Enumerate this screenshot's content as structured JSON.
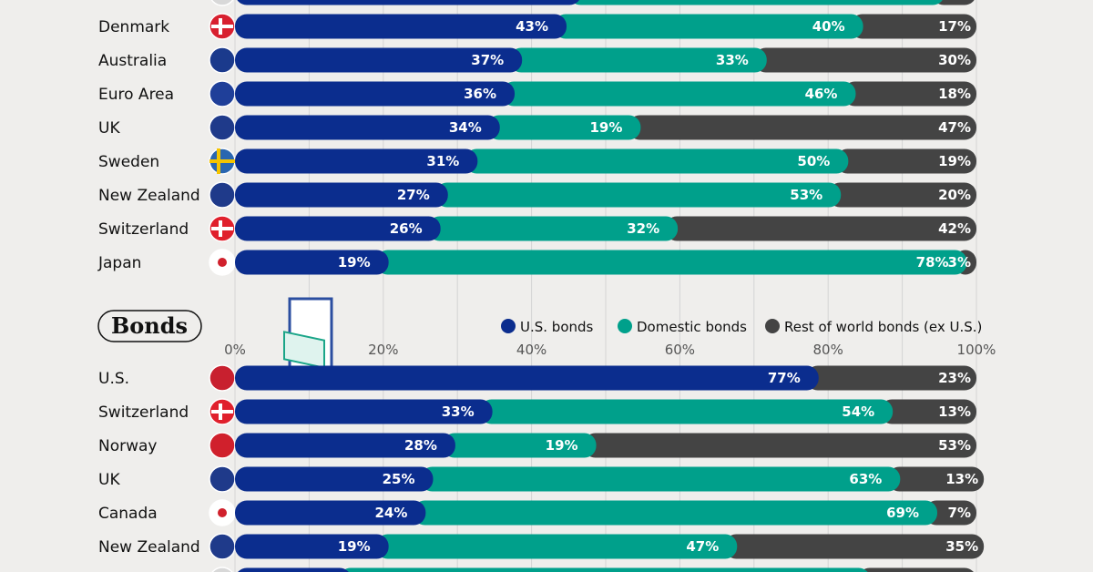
{
  "chart_data": [
    {
      "type": "bar",
      "orientation": "horizontal",
      "stacked": true,
      "section": "",
      "xlim": [
        0,
        100
      ],
      "grid": true,
      "colors": {
        "us": "#0b2d8e",
        "domestic": "#00a08b",
        "rest": "#444444"
      },
      "categories": [
        "",
        "Denmark",
        "Australia",
        "Euro Area",
        "UK",
        "Sweden",
        "New Zealand",
        "Switzerland",
        "Japan"
      ],
      "flags": [
        "flag-icon",
        "denmark-flag-icon",
        "australia-flag-icon",
        "eu-flag-icon",
        "uk-flag-icon",
        "sweden-flag-icon",
        "new-zealand-flag-icon",
        "switzerland-flag-icon",
        "japan-flag-icon"
      ],
      "series": [
        {
          "key": "us",
          "values": [
            45,
            43,
            37,
            36,
            34,
            31,
            27,
            26,
            19
          ]
        },
        {
          "key": "domestic",
          "values": [
            49,
            40,
            33,
            46,
            19,
            50,
            53,
            32,
            78
          ]
        },
        {
          "key": "rest",
          "values": [
            6,
            17,
            30,
            18,
            47,
            19,
            20,
            42,
            3
          ]
        }
      ],
      "labels_shown": [
        false,
        true,
        true,
        true,
        true,
        true,
        true,
        true,
        true
      ]
    },
    {
      "type": "bar",
      "orientation": "horizontal",
      "stacked": true,
      "section": "Bonds",
      "xlim": [
        0,
        100
      ],
      "grid": true,
      "xticks": [
        "0%",
        "20%",
        "40%",
        "60%",
        "80%",
        "100%"
      ],
      "legend": [
        "U.S. bonds",
        "Domestic bonds",
        "Rest of world bonds (ex U.S.)"
      ],
      "legend_placement": "top-right",
      "colors": {
        "us": "#0b2d8e",
        "domestic": "#00a08b",
        "rest": "#444444"
      },
      "categories": [
        "U.S.",
        "Switzerland",
        "Norway",
        "UK",
        "Canada",
        "New Zealand",
        ""
      ],
      "flags": [
        "us-flag-icon",
        "switzerland-flag-icon",
        "norway-flag-icon",
        "uk-flag-icon",
        "canada-flag-icon",
        "new-zealand-flag-icon",
        "flag-icon"
      ],
      "series": [
        {
          "key": "us",
          "values": [
            77,
            33,
            28,
            25,
            24,
            19,
            14
          ]
        },
        {
          "key": "domestic",
          "values": [
            0,
            54,
            19,
            63,
            69,
            47,
            70
          ]
        },
        {
          "key": "rest",
          "values": [
            23,
            13,
            53,
            13,
            7,
            35,
            16
          ]
        }
      ],
      "labels_shown": [
        true,
        true,
        true,
        true,
        true,
        true,
        false
      ]
    }
  ]
}
